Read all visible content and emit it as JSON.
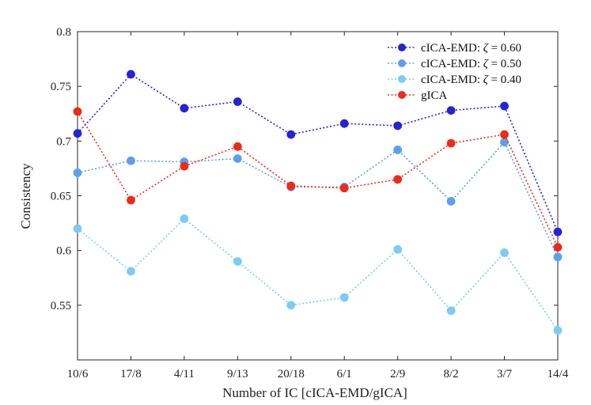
{
  "chart_data": {
    "type": "line",
    "title": "",
    "xlabel": "Number of IC [cICA-EMD/gICA]",
    "ylabel": "Consistency",
    "categories": [
      "10/6",
      "17/8",
      "4/11",
      "9/13",
      "20/18",
      "6/1",
      "2/9",
      "8/2",
      "3/7",
      "14/4"
    ],
    "ylim": [
      0.5,
      0.8
    ],
    "yticks": [
      0.55,
      0.6,
      0.65,
      0.7,
      0.75,
      0.8
    ],
    "ytick_labels": [
      "0.55",
      "0.6",
      "0.65",
      "0.7",
      "0.75",
      "0.8"
    ],
    "grid": false,
    "legend_position": "top-right",
    "series": [
      {
        "name": "cICA-EMD: ζ = 0.60",
        "legend_prefix": "cICA-EMD: ",
        "legend_symbol": "ζ",
        "legend_suffix": " = 0.60",
        "color": "#2424d6",
        "values": [
          0.707,
          0.761,
          0.73,
          0.736,
          0.706,
          0.716,
          0.714,
          0.728,
          0.732,
          0.617
        ]
      },
      {
        "name": "cICA-EMD: ζ = 0.50",
        "legend_prefix": "cICA-EMD: ",
        "legend_symbol": "ζ",
        "legend_suffix": " = 0.50",
        "color": "#5c9ff0",
        "values": [
          0.671,
          0.682,
          0.681,
          0.684,
          0.658,
          0.658,
          0.692,
          0.645,
          0.699,
          0.594
        ]
      },
      {
        "name": "cICA-EMD: ζ = 0.40",
        "legend_prefix": "cICA-EMD: ",
        "legend_symbol": "ζ",
        "legend_suffix": " = 0.40",
        "color": "#7ccbf5",
        "values": [
          0.62,
          0.581,
          0.629,
          0.59,
          0.55,
          0.557,
          0.601,
          0.545,
          0.598,
          0.527
        ]
      },
      {
        "name": "gICA",
        "legend_prefix": "gICA",
        "legend_symbol": "",
        "legend_suffix": "",
        "color": "#ee2a18",
        "values": [
          0.727,
          0.646,
          0.677,
          0.695,
          0.659,
          0.657,
          0.665,
          0.698,
          0.706,
          0.603
        ]
      }
    ]
  }
}
